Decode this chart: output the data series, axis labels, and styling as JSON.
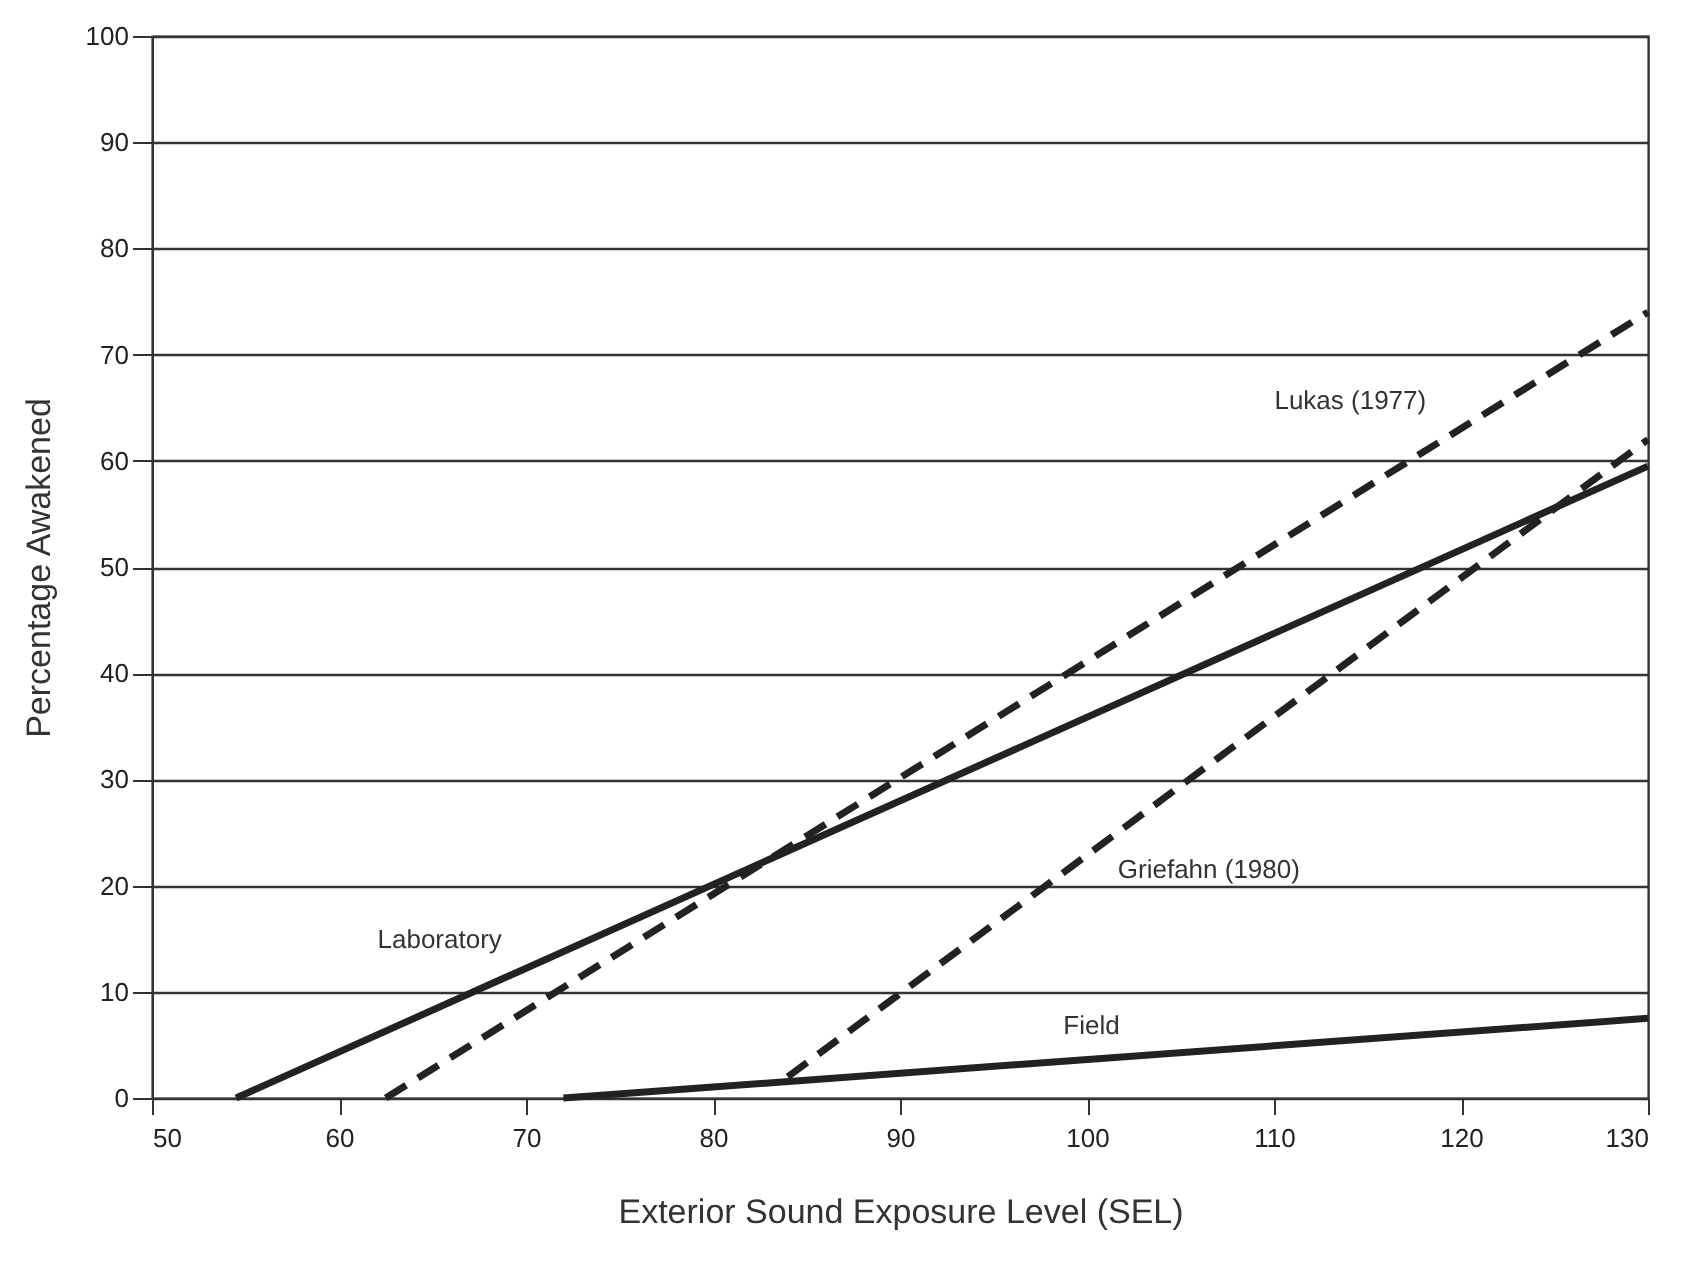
{
  "chart_data": {
    "type": "line",
    "xlabel": "Exterior Sound Exposure Level (SEL)",
    "ylabel": "Percentage Awakened",
    "xlim": [
      50,
      130
    ],
    "xticks": [
      50,
      60,
      70,
      80,
      90,
      100,
      110,
      120,
      130
    ],
    "ylim": [
      0,
      100
    ],
    "yticks": [
      0,
      10,
      20,
      30,
      40,
      50,
      60,
      70,
      80,
      90,
      100
    ],
    "grid": "y",
    "marker": "none",
    "series": [
      {
        "name": "Laboratory",
        "color": "#222222",
        "line_style": "solid",
        "x": [
          54.5,
          130
        ],
        "values": [
          0,
          59.5
        ]
      },
      {
        "name": "Lukas (1977)",
        "color": "#222222",
        "line_style": "dashed",
        "x": [
          62.5,
          130
        ],
        "values": [
          0,
          74
        ]
      },
      {
        "name": "Griefahn (1980)",
        "color": "#222222",
        "line_style": "dashed",
        "x": [
          84,
          130
        ],
        "values": [
          2,
          62
        ]
      },
      {
        "name": "Field",
        "color": "#222222",
        "line_style": "solid",
        "x": [
          72,
          130
        ],
        "values": [
          0,
          7.5
        ]
      }
    ]
  }
}
